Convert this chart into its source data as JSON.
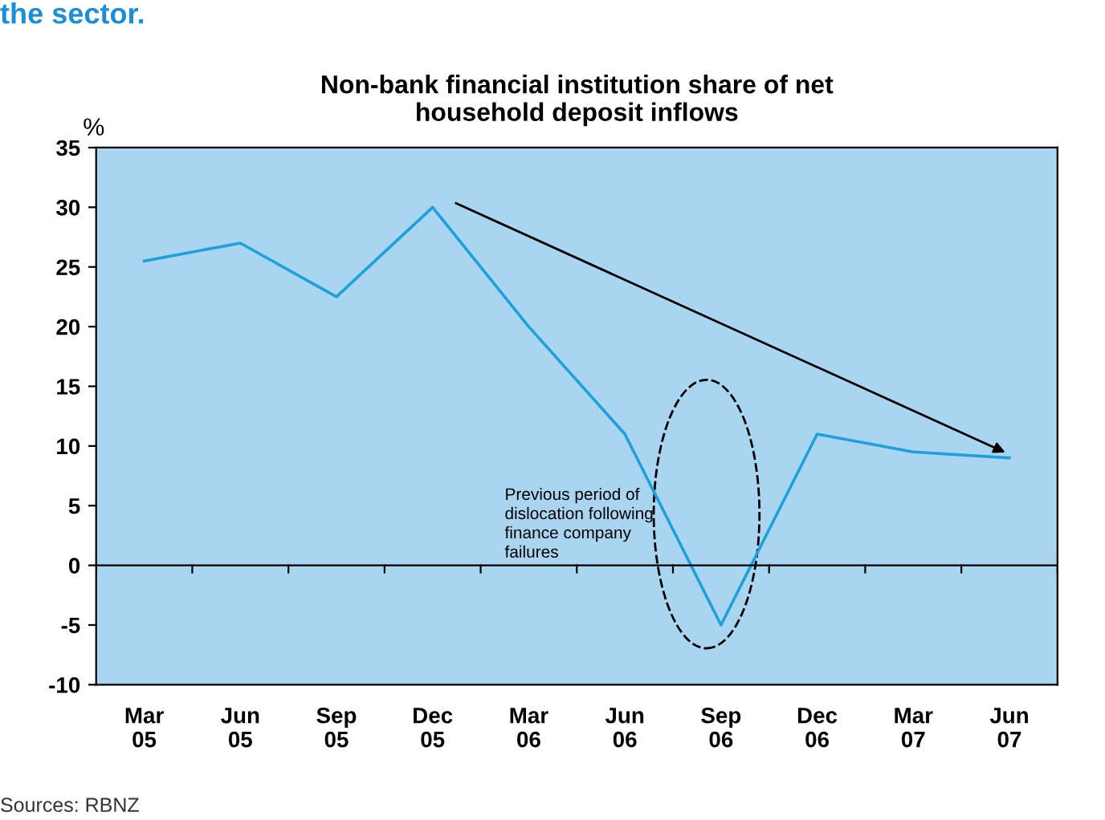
{
  "chart_data": {
    "type": "line",
    "title": "Non-bank financial institution share of net\nhousehold deposit inflows",
    "ylabel": "%",
    "categories": [
      "Mar\n05",
      "Jun\n05",
      "Sep\n05",
      "Dec\n05",
      "Mar\n06",
      "Jun\n06",
      "Sep\n06",
      "Dec\n06",
      "Mar\n07",
      "Jun\n07"
    ],
    "series": [
      {
        "color": "#1ea0dc",
        "values": [
          25.5,
          27,
          22.5,
          30,
          20,
          11,
          -5,
          11,
          9.5,
          9
        ]
      }
    ],
    "ylim": [
      -10,
      35
    ],
    "yticks": [
      -10,
      -5,
      0,
      5,
      10,
      15,
      20,
      25,
      30,
      35
    ],
    "marker": "none",
    "line_style": "solid",
    "annotations": [
      "the sector.",
      "Previous period of\ndislocation following\nfinance company\nfailures",
      "Sources: RBNZ"
    ]
  }
}
